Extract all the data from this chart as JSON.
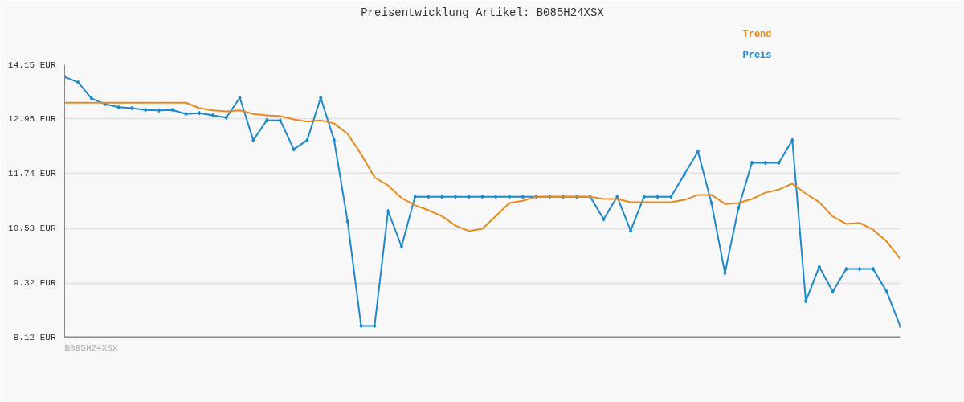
{
  "chart_data": {
    "type": "line",
    "title": "Preisentwicklung Artikel: B085H24XSX",
    "annotations": [
      "B085H24XSX"
    ],
    "categories": [
      null,
      null,
      null,
      null,
      null,
      null,
      null,
      null,
      null,
      null,
      null,
      null,
      null,
      null,
      null,
      null,
      null,
      null,
      null,
      null,
      null,
      null,
      null,
      null,
      null,
      null,
      null,
      null,
      null,
      null,
      null,
      null,
      null,
      null,
      null,
      null,
      null,
      null,
      null,
      null,
      null,
      null,
      null,
      null,
      null,
      null,
      null,
      null,
      null,
      null,
      null,
      null,
      null,
      null,
      null,
      null,
      null,
      null,
      null,
      null,
      null,
      null,
      null
    ],
    "ylim": [
      8.12,
      14.15
    ],
    "yticks": [
      {
        "value": 8.12,
        "label": "8.12 EUR"
      },
      {
        "value": 9.32,
        "label": "9.32 EUR"
      },
      {
        "value": 10.53,
        "label": "10.53 EUR"
      },
      {
        "value": 11.74,
        "label": "11.74 EUR"
      },
      {
        "value": 12.95,
        "label": "12.95 EUR"
      },
      {
        "value": 14.15,
        "label": "14.15 EUR"
      }
    ],
    "grid": "y",
    "tick_labels": "y",
    "series": [
      {
        "name": "Preis",
        "color": "#1f88c8",
        "marker": "diamond",
        "values": [
          13.88,
          13.76,
          13.4,
          13.28,
          13.21,
          13.19,
          13.15,
          13.14,
          13.15,
          13.06,
          13.08,
          13.03,
          12.98,
          13.42,
          12.48,
          12.92,
          12.92,
          12.28,
          12.48,
          13.42,
          12.48,
          10.68,
          8.37,
          8.37,
          10.91,
          10.13,
          11.23,
          11.23,
          11.23,
          11.23,
          11.23,
          11.23,
          11.23,
          11.23,
          11.23,
          11.23,
          11.23,
          11.23,
          11.23,
          11.23,
          10.73,
          11.23,
          10.48,
          11.23,
          11.23,
          11.23,
          11.73,
          12.23,
          11.09,
          9.54,
          10.98,
          11.98,
          11.98,
          11.98,
          12.48,
          8.92,
          9.68,
          9.13,
          9.63,
          9.63,
          9.63,
          9.13,
          8.37
        ]
      },
      {
        "name": "Trend",
        "color": "#e68a1e",
        "values": [
          13.31,
          13.31,
          13.31,
          13.31,
          13.31,
          13.31,
          13.31,
          13.31,
          13.31,
          13.31,
          13.19,
          13.14,
          13.12,
          13.14,
          13.06,
          13.03,
          13.01,
          12.94,
          12.89,
          12.92,
          12.85,
          12.62,
          12.17,
          11.66,
          11.48,
          11.2,
          11.04,
          10.93,
          10.8,
          10.59,
          10.47,
          10.52,
          10.8,
          11.09,
          11.14,
          11.23,
          11.23,
          11.23,
          11.23,
          11.23,
          11.18,
          11.18,
          11.11,
          11.11,
          11.11,
          11.11,
          11.16,
          11.27,
          11.27,
          11.07,
          11.09,
          11.18,
          11.32,
          11.39,
          11.52,
          11.3,
          11.11,
          10.79,
          10.63,
          10.65,
          10.5,
          10.24,
          9.86
        ]
      }
    ]
  }
}
